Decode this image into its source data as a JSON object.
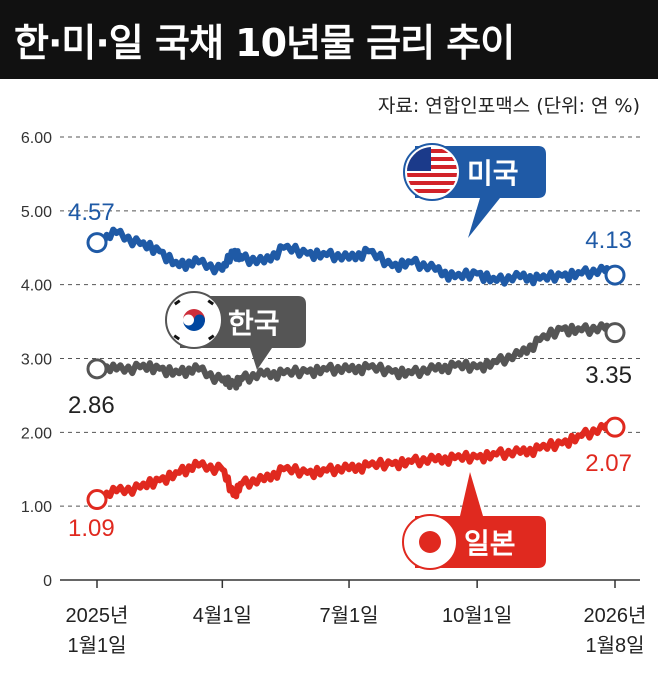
{
  "header": {
    "title": "한·미·일 국채 10년물 금리 추이",
    "source": "자료: 연합인포맥스 (단위: 연 %)"
  },
  "colors": {
    "us": "#1f5aa6",
    "korea": "#555555",
    "japan": "#e0291f",
    "grid": "#555555"
  },
  "callouts": {
    "us": "미국",
    "korea": "한국",
    "japan": "일본"
  },
  "chart_data": {
    "type": "line",
    "title": "한·미·일 국채 10년물 금리 추이",
    "ylabel": "연 %",
    "ylim": [
      0,
      6
    ],
    "grid": true,
    "y_ticks": [
      "0",
      "1.00",
      "2.00",
      "3.00",
      "4.00",
      "5.00",
      "6.00"
    ],
    "x_ticks": [
      {
        "date": "2025-01-01",
        "label": [
          "2025년",
          "1월1일"
        ]
      },
      {
        "date": "2025-04-01",
        "label": [
          "4월1일"
        ]
      },
      {
        "date": "2025-07-01",
        "label": [
          "7월1일"
        ]
      },
      {
        "date": "2025-10-01",
        "label": [
          "10월1일"
        ]
      },
      {
        "date": "2026-01-08",
        "label": [
          "2026년",
          "1월8일"
        ]
      }
    ],
    "x": [
      "2025-01-01",
      "2025-01-15",
      "2025-02-01",
      "2025-02-15",
      "2025-03-01",
      "2025-03-15",
      "2025-04-01",
      "2025-04-09",
      "2025-04-15",
      "2025-05-01",
      "2025-05-15",
      "2025-06-01",
      "2025-06-15",
      "2025-07-01",
      "2025-07-15",
      "2025-08-01",
      "2025-08-15",
      "2025-09-01",
      "2025-09-15",
      "2025-10-01",
      "2025-10-15",
      "2025-11-01",
      "2025-11-15",
      "2025-12-01",
      "2025-12-15",
      "2026-01-01",
      "2026-01-08"
    ],
    "series": [
      {
        "name": "미국",
        "key": "us",
        "start_label": "4.57",
        "end_label": "4.13",
        "values": [
          4.57,
          4.7,
          4.55,
          4.45,
          4.25,
          4.3,
          4.2,
          4.45,
          4.35,
          4.3,
          4.5,
          4.42,
          4.4,
          4.35,
          4.45,
          4.25,
          4.3,
          4.2,
          4.1,
          4.15,
          4.05,
          4.1,
          4.08,
          4.12,
          4.15,
          4.18,
          4.13
        ]
      },
      {
        "name": "한국",
        "key": "korea",
        "start_label": "2.86",
        "end_label": "3.35",
        "values": [
          2.86,
          2.85,
          2.88,
          2.86,
          2.8,
          2.85,
          2.7,
          2.65,
          2.72,
          2.78,
          2.8,
          2.82,
          2.85,
          2.84,
          2.88,
          2.82,
          2.8,
          2.85,
          2.9,
          2.88,
          2.95,
          3.05,
          3.25,
          3.4,
          3.38,
          3.4,
          3.35
        ]
      },
      {
        "name": "일본",
        "key": "japan",
        "start_label": "1.09",
        "end_label": "2.07",
        "values": [
          1.09,
          1.2,
          1.25,
          1.35,
          1.45,
          1.55,
          1.5,
          1.15,
          1.3,
          1.35,
          1.5,
          1.45,
          1.48,
          1.5,
          1.55,
          1.57,
          1.6,
          1.62,
          1.65,
          1.66,
          1.7,
          1.72,
          1.78,
          1.85,
          1.95,
          2.05,
          2.07
        ]
      }
    ]
  }
}
